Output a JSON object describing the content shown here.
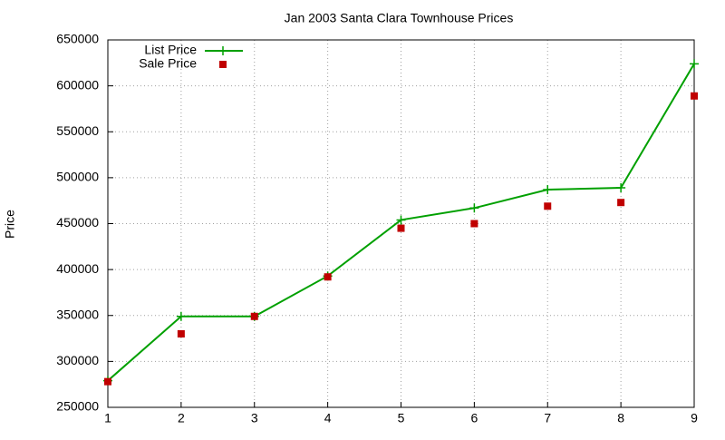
{
  "chart_data": {
    "type": "line",
    "title": "Jan 2003 Santa Clara Townhouse Prices",
    "ylabel": "Price",
    "x": [
      1,
      2,
      3,
      4,
      5,
      6,
      7,
      8,
      9
    ],
    "series": [
      {
        "name": "List Price",
        "type": "line",
        "color": "#00a000",
        "values": [
          279000,
          349000,
          349000,
          393000,
          454000,
          467000,
          487000,
          489000,
          624000
        ]
      },
      {
        "name": "Sale Price",
        "type": "scatter",
        "color": "#c00000",
        "values": [
          278000,
          330000,
          349000,
          392000,
          445000,
          450000,
          469000,
          473000,
          589000
        ]
      }
    ],
    "xlim": [
      1,
      9
    ],
    "xticks": [
      1,
      2,
      3,
      4,
      5,
      6,
      7,
      8,
      9
    ],
    "ylim": [
      250000,
      650000
    ],
    "yticks": [
      250000,
      300000,
      350000,
      400000,
      450000,
      500000,
      550000,
      600000,
      650000
    ],
    "grid": true,
    "legend": "top-left"
  }
}
